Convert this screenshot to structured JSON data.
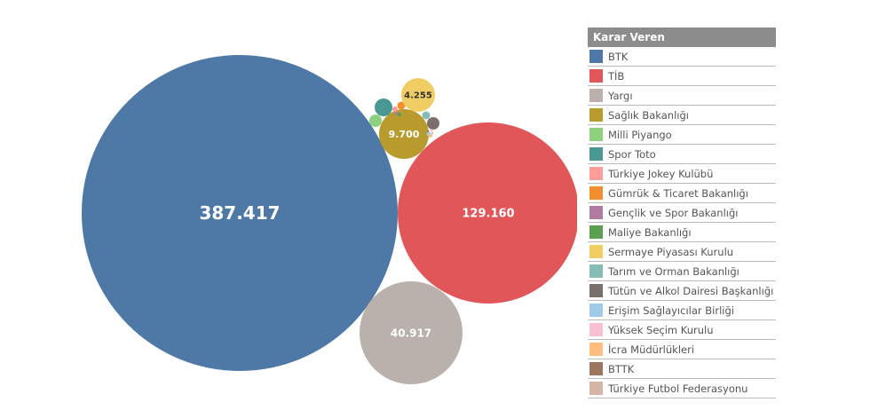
{
  "chart_data": {
    "type": "bubble",
    "legend_title": "Karar Veren",
    "legend_position": "right",
    "series": [
      {
        "name": "BTK",
        "value": 387417,
        "label": "387.417",
        "color": "#4e79a7"
      },
      {
        "name": "TİB",
        "value": 129160,
        "label": "129.160",
        "color": "#e15759"
      },
      {
        "name": "Yargı",
        "value": 40917,
        "label": "40.917",
        "color": "#bab0ac"
      },
      {
        "name": "Sağlık Bakanlığı",
        "value": 9700,
        "label": "9.700",
        "color": "#b89b2c"
      },
      {
        "name": "Milli Piyango",
        "value": null,
        "label": "",
        "color": "#8cd17d"
      },
      {
        "name": "Spor Toto",
        "value": null,
        "label": "",
        "color": "#499894"
      },
      {
        "name": "Türkiye Jokey Kulübü",
        "value": null,
        "label": "",
        "color": "#ff9d9a"
      },
      {
        "name": "Gümrük & Ticaret Bakanlığı",
        "value": null,
        "label": "",
        "color": "#f28e2b"
      },
      {
        "name": "Gençlik ve Spor Bakanlığı",
        "value": null,
        "label": "",
        "color": "#b07aa1"
      },
      {
        "name": "Maliye Bakanlığı",
        "value": null,
        "label": "",
        "color": "#59a14f"
      },
      {
        "name": "Sermaye Piyasası Kurulu",
        "value": 4255,
        "label": "4.255",
        "color": "#f1ce63"
      },
      {
        "name": "Tarım ve Orman Bakanlığı",
        "value": null,
        "label": "",
        "color": "#86bcb6"
      },
      {
        "name": "Tütün ve Alkol Dairesi Başkanlığı",
        "value": null,
        "label": "",
        "color": "#79706e"
      },
      {
        "name": "Erişim Sağlayıcılar Birliği",
        "value": null,
        "label": "",
        "color": "#a0cbe8"
      },
      {
        "name": "Yüksek Seçim Kurulu",
        "value": null,
        "label": "",
        "color": "#fabfd2"
      },
      {
        "name": "İcra Müdürlükleri",
        "value": null,
        "label": "",
        "color": "#ffbe7d"
      },
      {
        "name": "BTTK",
        "value": null,
        "label": "",
        "color": "#9d7660"
      },
      {
        "name": "Türkiye Futbol Federasyonu",
        "value": null,
        "label": "",
        "color": "#d7b5a6"
      }
    ]
  }
}
